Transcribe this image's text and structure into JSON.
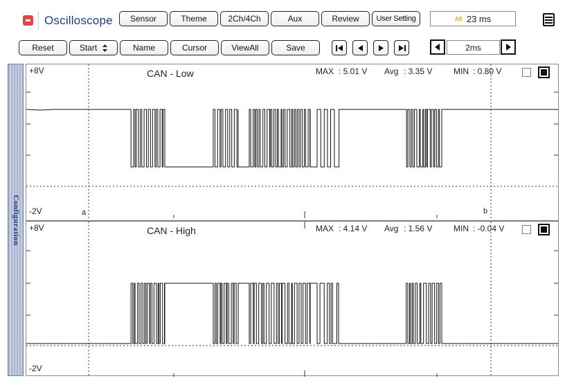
{
  "app": {
    "title": "Oscilloscope",
    "icon": "app-icon"
  },
  "header": {
    "buttons": [
      {
        "label": "Sensor"
      },
      {
        "label": "Theme"
      },
      {
        "label": "2Ch/4Ch"
      },
      {
        "label": "Aux"
      },
      {
        "label": "Review"
      },
      {
        "label": "User Setting"
      }
    ],
    "time_display": {
      "icon_text": "AS",
      "value": "23 ms"
    },
    "menu_icon": "menu-icon"
  },
  "toolbar": {
    "reset": "Reset",
    "start": "Start",
    "start_icon": "up-down-arrows-icon",
    "name": "Name",
    "cursor": "Cursor",
    "viewall": "ViewAll",
    "save": "Save",
    "nav_icons": [
      "skip-to-start-icon",
      "step-back-icon",
      "step-forward-icon",
      "skip-to-end-icon"
    ],
    "timebase": "2ms"
  },
  "sidebar": {
    "config_label": "Configuration"
  },
  "channels": [
    {
      "name": "CAN - Low",
      "y_top_label": "+8V",
      "y_bottom_label": "-2V",
      "stats": {
        "max_label": "MAX",
        "max_value": ": 5.01 V",
        "avg_label": "Avg",
        "avg_value": ": 3.35 V",
        "min_label": "MIN",
        "min_value": ": 0.80 V"
      },
      "cursor_a_label": "a",
      "cursor_b_label": "b"
    },
    {
      "name": "CAN - High",
      "y_top_label": "+8V",
      "y_bottom_label": "-2V",
      "stats": {
        "max_label": "MAX",
        "max_value": ": 4.14 V",
        "avg_label": "Avg",
        "avg_value": ": 1.56 V",
        "min_label": "MIN",
        "min_value": ": -0.04 V"
      }
    }
  ],
  "colors": {
    "title_blue": "#1e3b8a",
    "icon_red": "#e2483f",
    "trace": "#111111",
    "grid": "#333333",
    "config_tab": "#b7c2da"
  }
}
